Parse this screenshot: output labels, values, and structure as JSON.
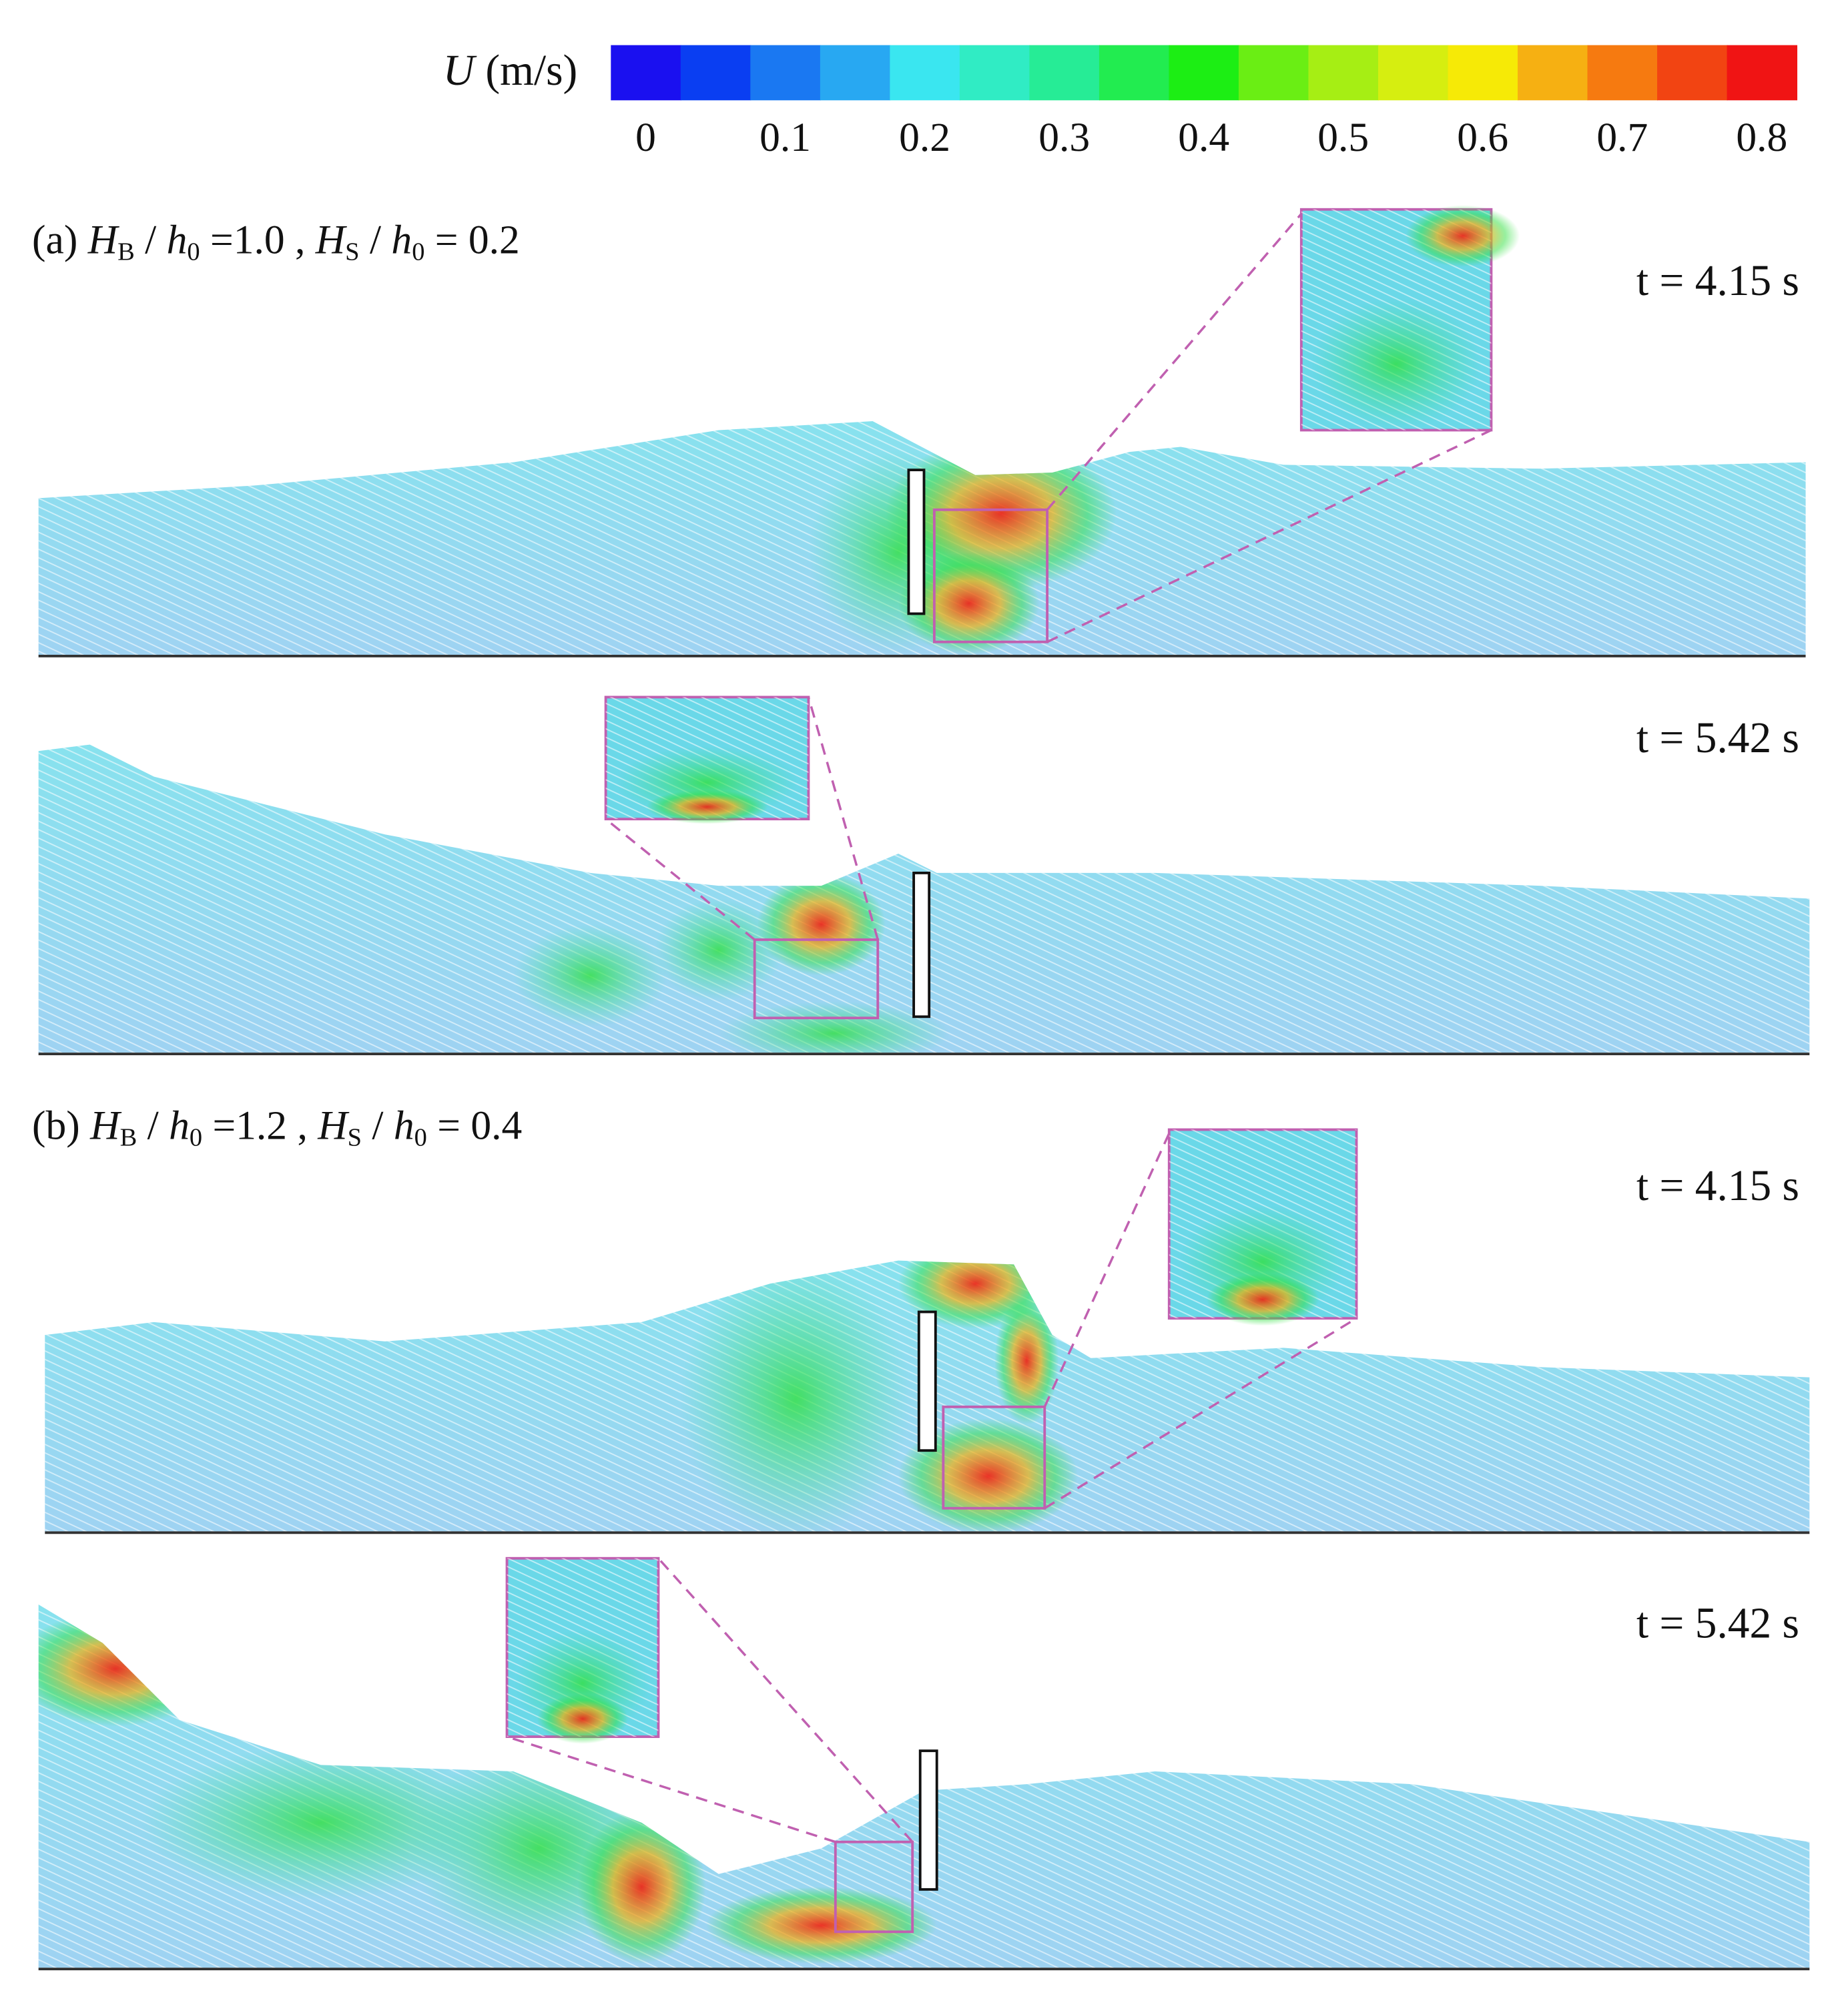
{
  "colorbar": {
    "label": [
      "U",
      " (m/s)"
    ],
    "ticks": [
      "0",
      "0.1",
      "0.2",
      "0.3",
      "0.4",
      "0.5",
      "0.6",
      "0.7",
      "0.8"
    ],
    "colors": [
      "#1a10f0",
      "#0a3ef2",
      "#1a78f2",
      "#28a8f2",
      "#3ae6f0",
      "#30ecc4",
      "#26ec96",
      "#22ec50",
      "#1cee14",
      "#6aee14",
      "#a6ee14",
      "#d6ee10",
      "#f6ea06",
      "#f6b012",
      "#f67a10",
      "#f24412",
      "#f01414"
    ]
  },
  "panels": [
    {
      "label": [
        "(a) ",
        "H",
        "B",
        " / ",
        "h",
        "0",
        " =1.0 , ",
        "H",
        "S",
        " / ",
        "h",
        "0",
        " = 0.2"
      ],
      "time": "t = 4.15 s"
    },
    {
      "time": "t = 5.42 s"
    },
    {
      "label": [
        "(b) ",
        "H",
        "B",
        " / ",
        "h",
        "0",
        " =1.2 , ",
        "H",
        "S",
        " / ",
        "h",
        "0",
        " = 0.4"
      ],
      "time": "t = 4.15 s"
    },
    {
      "time": "t = 5.42 s"
    }
  ]
}
